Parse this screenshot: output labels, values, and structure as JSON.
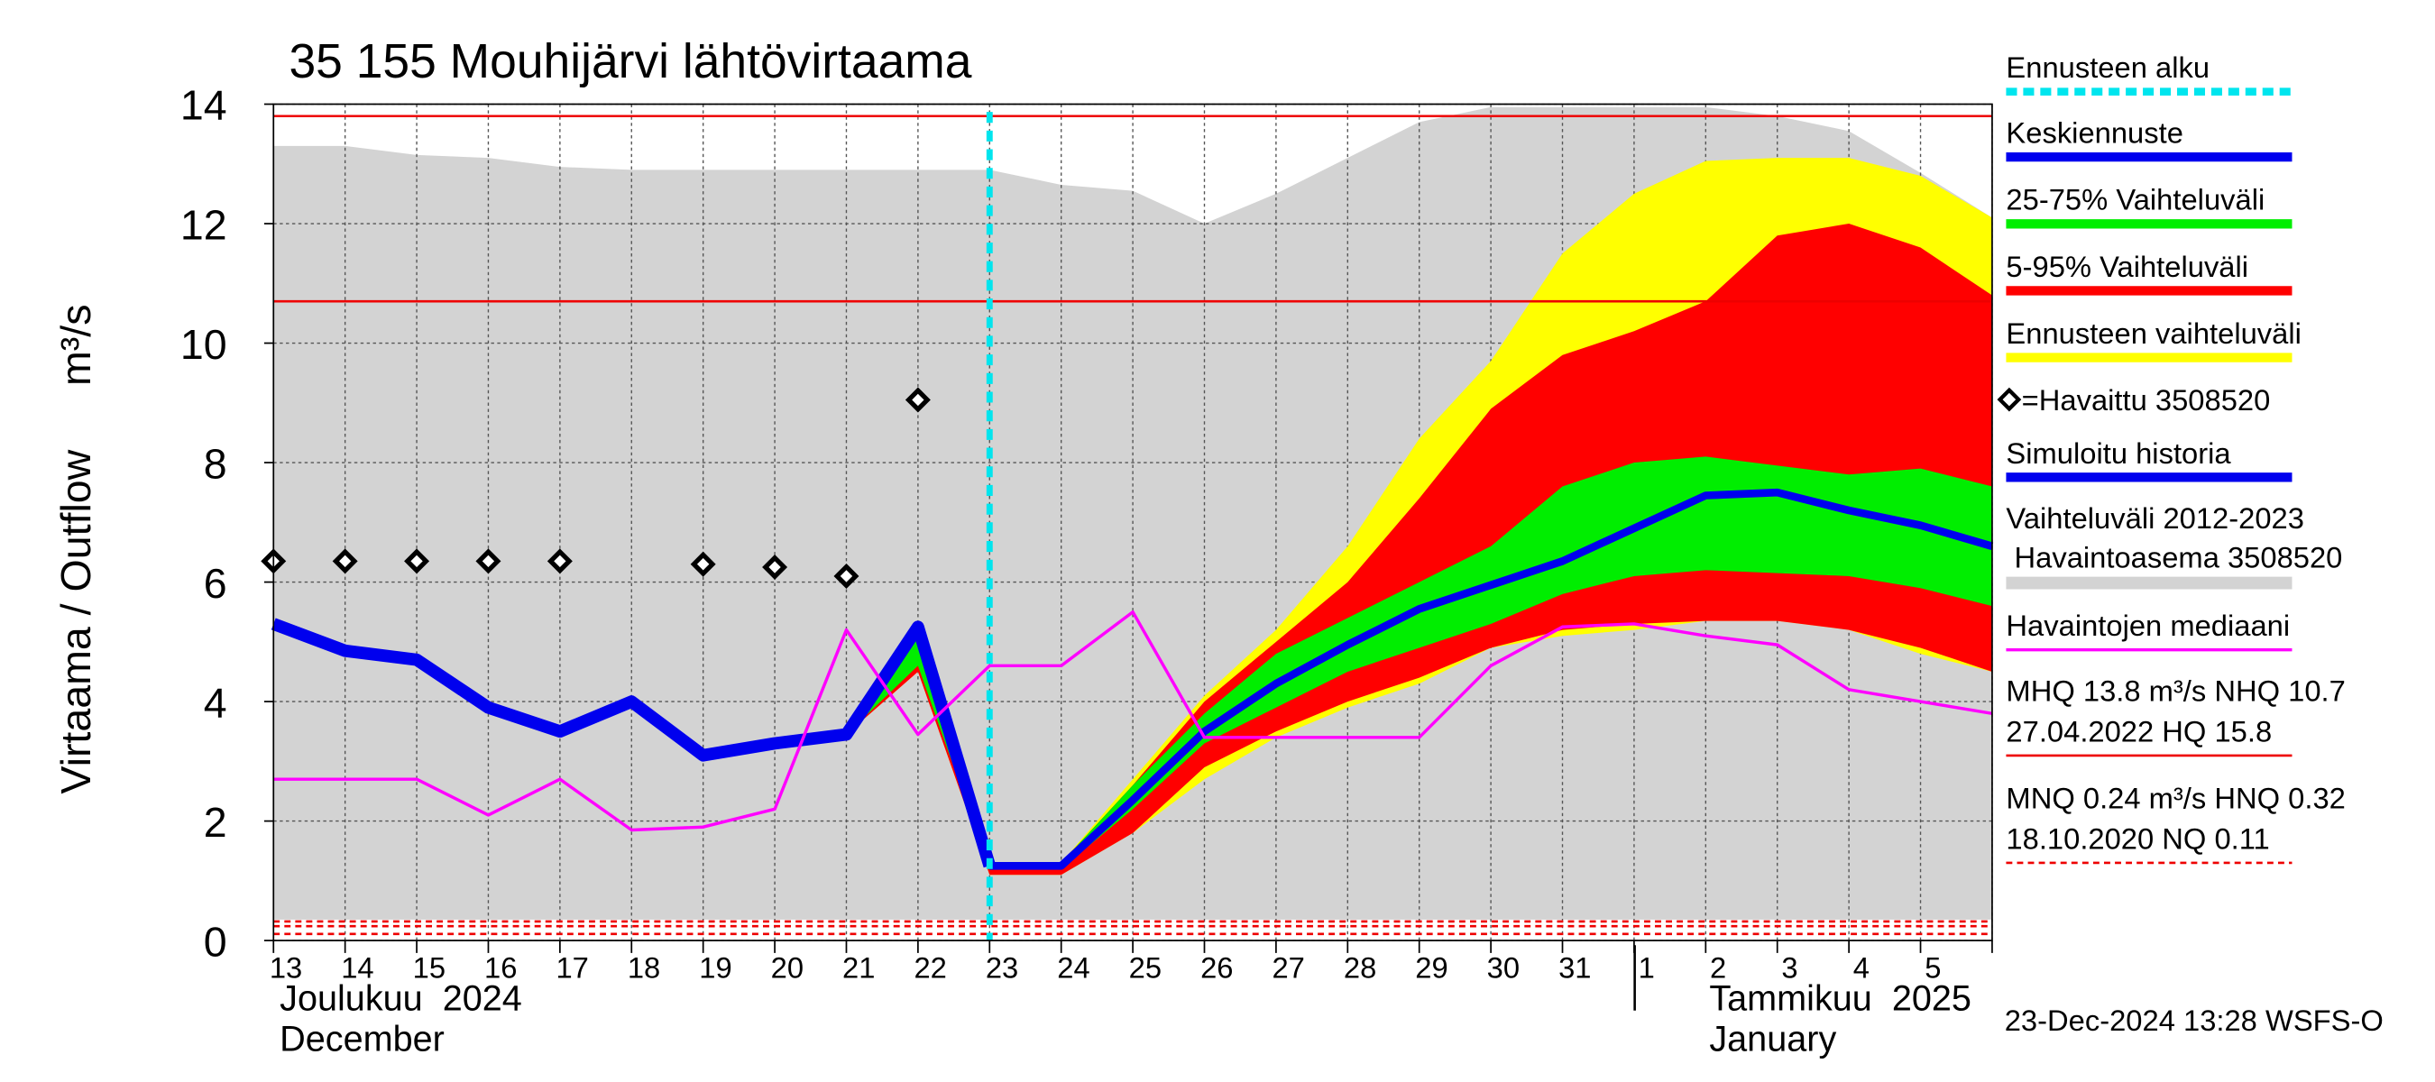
{
  "chart_data": {
    "type": "hydrograph",
    "title": "35 155 Mouhijärvi lähtövirtaama",
    "y_label": [
      "Virtaama / Outflow",
      "m³/s"
    ],
    "month_labels": [
      [
        "Joulukuu  2024",
        "December"
      ],
      [
        "Tammikuu  2025",
        "January"
      ]
    ],
    "footer": "23-Dec-2024 13:28 WSFS-O",
    "categories": [
      "13",
      "14",
      "15",
      "16",
      "17",
      "18",
      "19",
      "20",
      "21",
      "22",
      "23",
      "24",
      "25",
      "26",
      "27",
      "28",
      "29",
      "30",
      "31",
      "1",
      "2",
      "3",
      "4",
      "5",
      null
    ],
    "ylim": [
      0,
      14
    ],
    "yticks": [
      0,
      2,
      4,
      6,
      8,
      10,
      12,
      14
    ],
    "grid": true,
    "forecast_start": {
      "category": "23",
      "name": "Ennusteen alku",
      "color": "#00e5ee"
    },
    "series": [
      {
        "name": "Keskiennuste",
        "kind": "line",
        "color": "#0000ee",
        "values": [
          null,
          null,
          null,
          null,
          null,
          null,
          null,
          null,
          null,
          null,
          1.25,
          1.25,
          2.35,
          3.5,
          4.3,
          4.95,
          5.55,
          5.95,
          6.35,
          6.9,
          7.45,
          7.5,
          7.2,
          6.95,
          6.6
        ]
      },
      {
        "name": "25-75% Vaihteluväli",
        "kind": "band",
        "color": "#00ee00",
        "low": [
          null,
          null,
          null,
          null,
          null,
          null,
          null,
          null,
          3.45,
          4.6,
          1.2,
          1.2,
          2.2,
          3.3,
          3.9,
          4.5,
          4.9,
          5.3,
          5.8,
          6.1,
          6.2,
          6.15,
          6.1,
          5.9,
          5.6
        ],
        "high": [
          null,
          null,
          null,
          null,
          null,
          null,
          null,
          null,
          3.45,
          5.25,
          1.3,
          1.3,
          2.6,
          3.8,
          4.8,
          5.4,
          6.0,
          6.6,
          7.6,
          8.0,
          8.1,
          7.95,
          7.8,
          7.9,
          7.6
        ]
      },
      {
        "name": "5-95% Vaihteluväli",
        "kind": "band",
        "color": "#ff0000",
        "low": [
          null,
          null,
          null,
          null,
          null,
          null,
          null,
          null,
          3.45,
          4.5,
          1.1,
          1.1,
          1.8,
          2.9,
          3.5,
          4.0,
          4.4,
          4.9,
          5.2,
          5.3,
          5.35,
          5.35,
          5.2,
          4.9,
          4.5
        ],
        "high": [
          null,
          null,
          null,
          null,
          null,
          null,
          null,
          null,
          3.45,
          5.25,
          1.3,
          1.3,
          2.6,
          4.0,
          5.0,
          6.0,
          7.4,
          8.9,
          9.8,
          10.2,
          10.7,
          11.8,
          12.0,
          11.6,
          10.8
        ]
      },
      {
        "name": "Ennusteen vaihteluväli",
        "kind": "band",
        "color": "#ffff00",
        "low": [
          null,
          null,
          null,
          null,
          null,
          null,
          null,
          null,
          3.45,
          4.5,
          1.1,
          1.1,
          1.8,
          2.7,
          3.4,
          3.9,
          4.3,
          4.9,
          5.1,
          5.2,
          5.35,
          5.35,
          5.2,
          4.8,
          4.5
        ],
        "high": [
          null,
          null,
          null,
          null,
          null,
          null,
          null,
          null,
          3.45,
          5.25,
          1.3,
          1.3,
          2.7,
          4.1,
          5.2,
          6.6,
          8.4,
          9.7,
          11.5,
          12.5,
          13.05,
          13.1,
          13.1,
          12.8,
          12.1
        ]
      },
      {
        "name": "=Havaittu 3508520",
        "kind": "points",
        "color": "#000000",
        "values": [
          6.35,
          6.35,
          6.35,
          6.35,
          6.35,
          null,
          6.3,
          6.25,
          6.1,
          9.05,
          null,
          null,
          null,
          null,
          null,
          null,
          null,
          null,
          null,
          null,
          null,
          null,
          null,
          null,
          null
        ]
      },
      {
        "name": "Simuloitu historia",
        "kind": "line",
        "color": "#0000ee",
        "values": [
          5.3,
          4.85,
          4.7,
          3.9,
          3.5,
          4.0,
          3.1,
          3.3,
          3.45,
          5.25,
          1.25,
          null,
          null,
          null,
          null,
          null,
          null,
          null,
          null,
          null,
          null,
          null,
          null,
          null,
          null
        ]
      },
      {
        "name": [
          "Vaihteluväli 2012-2023",
          " Havaintoasema 3508520"
        ],
        "kind": "band",
        "color": "#d3d3d3",
        "low": [
          0.35,
          0.35,
          0.35,
          0.35,
          0.35,
          0.35,
          0.35,
          0.35,
          0.35,
          0.35,
          0.35,
          0.35,
          0.35,
          0.35,
          0.35,
          0.35,
          0.35,
          0.35,
          0.35,
          0.35,
          0.35,
          0.35,
          0.35,
          0.35,
          0.35
        ],
        "high": [
          13.3,
          13.3,
          13.15,
          13.1,
          12.95,
          12.9,
          12.9,
          12.9,
          12.9,
          12.9,
          12.9,
          12.65,
          12.55,
          12.0,
          12.5,
          13.1,
          13.7,
          13.95,
          13.95,
          13.95,
          13.95,
          13.8,
          13.55,
          12.85,
          12.1
        ]
      },
      {
        "name": "Havaintojen mediaani",
        "kind": "line",
        "color": "#ff00ff",
        "values": [
          2.7,
          2.7,
          2.7,
          2.1,
          2.7,
          1.85,
          1.9,
          2.2,
          5.2,
          3.45,
          4.6,
          4.6,
          5.5,
          3.4,
          3.4,
          3.4,
          3.4,
          4.6,
          5.25,
          5.3,
          5.1,
          4.95,
          4.2,
          4.0,
          3.8
        ]
      }
    ],
    "reference_lines": [
      {
        "value": 13.8,
        "style": "solid",
        "color": "#ee0000"
      },
      {
        "value": 10.7,
        "style": "solid",
        "color": "#ee0000"
      },
      {
        "value": 0.32,
        "style": "dashed",
        "color": "#ee0000"
      },
      {
        "value": 0.24,
        "style": "dashed",
        "color": "#ee0000"
      },
      {
        "value": 0.11,
        "style": "dashed",
        "color": "#ee0000"
      }
    ],
    "reference_legend": [
      {
        "lines": [
          "MHQ 13.8 m³/s NHQ 10.7",
          "27.04.2022 HQ 15.8"
        ],
        "style": "solid",
        "color": "#ee0000"
      },
      {
        "lines": [
          "MNQ 0.24 m³/s HNQ 0.32",
          "18.10.2020 NQ 0.11"
        ],
        "style": "dashed",
        "color": "#ee0000"
      }
    ]
  }
}
